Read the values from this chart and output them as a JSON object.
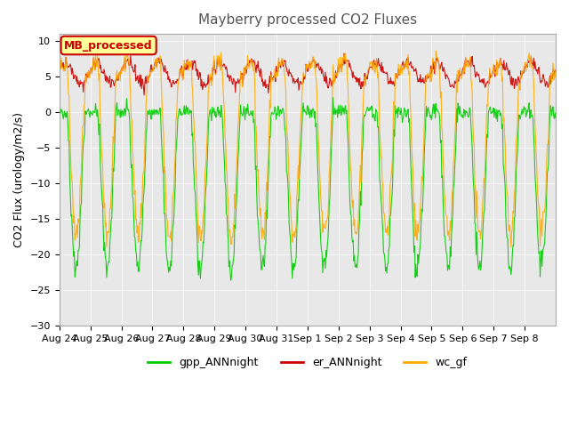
{
  "title": "Mayberry processed CO2 Fluxes",
  "ylabel": "CO2 Flux (urology/m2/s)",
  "ylim": [
    -30,
    11
  ],
  "yticks": [
    10,
    5,
    0,
    -5,
    -10,
    -15,
    -20,
    -25,
    -30
  ],
  "n_days": 16,
  "xtick_labels": [
    "Aug 24",
    "Aug 25",
    "Aug 26",
    "Aug 27",
    "Aug 28",
    "Aug 29",
    "Aug 30",
    "Aug 31",
    "Sep 1",
    "Sep 2",
    "Sep 3",
    "Sep 4",
    "Sep 5",
    "Sep 6",
    "Sep 7",
    "Sep 8"
  ],
  "colors": {
    "gpp": "#00cc00",
    "er": "#cc0000",
    "wc": "#ffaa00"
  },
  "background": "#e8e8e8",
  "legend_box_color": "#ffff99",
  "legend_box_edge": "#cc0000",
  "legend_text_color": "#cc0000",
  "annotation": "MB_processed",
  "figsize": [
    6.4,
    4.8
  ],
  "dpi": 100
}
